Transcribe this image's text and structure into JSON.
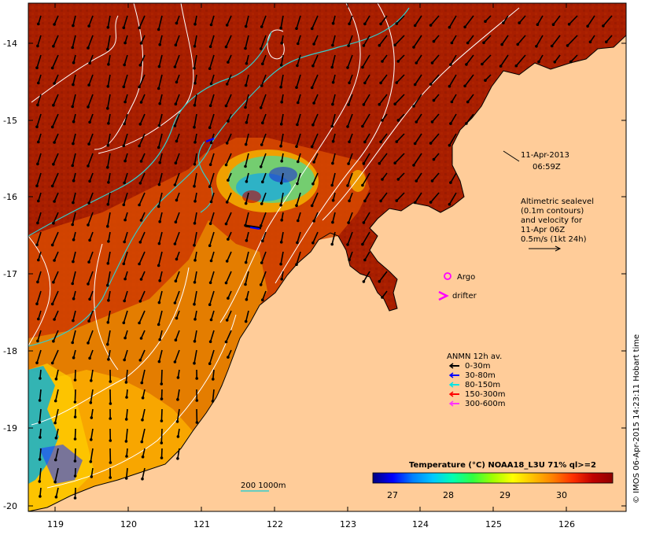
{
  "map": {
    "date_line": "11-Apr-2013",
    "time_line": "06:59Z",
    "altimetry_lines": [
      "Altimetric sealevel",
      "(0.1m contours)",
      "and velocity for",
      "11-Apr 06Z",
      "0.5m/s (1kt 24h)"
    ],
    "argo_label": "Argo",
    "drifter_label": "drifter",
    "anmn_title": "ANMN 12h av.",
    "anmn_legend": [
      {
        "label": "0-30m",
        "color": "#000000"
      },
      {
        "label": "30-80m",
        "color": "#0000ff"
      },
      {
        "label": "80-150m",
        "color": "#00e5e5"
      },
      {
        "label": "150-300m",
        "color": "#ff0000"
      },
      {
        "label": "300-600m",
        "color": "#ff33ff"
      }
    ],
    "bathy_label": "200  1000m",
    "colorbar_title": "Temperature (°C) NOAA18_L3U 71% ql>=2",
    "colorbar_ticks": [
      "27",
      "28",
      "29",
      "30"
    ],
    "colorbar_colors": [
      "#00007f",
      "#0000ff",
      "#0080ff",
      "#00c8ff",
      "#00ffb0",
      "#30ff40",
      "#a0ff00",
      "#ffff00",
      "#ffc000",
      "#ff8000",
      "#ff3000",
      "#c00000",
      "#8f0000"
    ],
    "copyright": "© IMOS 06-Apr-2015 14:23:11 Hobart time",
    "lat_ticks": [
      "-14",
      "-15",
      "-16",
      "-17",
      "-18",
      "-19",
      "-20"
    ],
    "lon_ticks": [
      "119",
      "120",
      "121",
      "122",
      "123",
      "124",
      "125",
      "126"
    ],
    "colors": {
      "land": "#ffcc99",
      "warm_sea": "#aa1f00",
      "mid_sea": "#d84a00",
      "shelf_sea": "#e88c00",
      "cool_sea": "#ffd200",
      "contour": "#ffffff",
      "bathy": "#33cccc",
      "argo": "#ff00ff",
      "drifter": "#ff00ff"
    }
  }
}
